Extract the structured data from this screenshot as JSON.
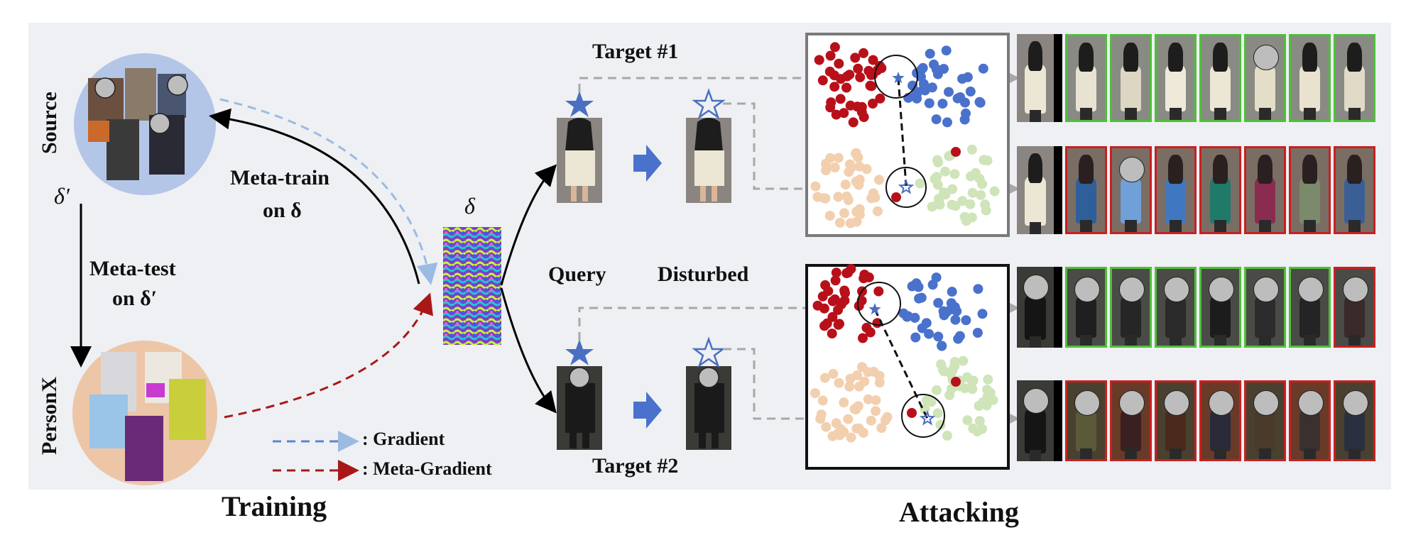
{
  "panels": {
    "training_title": "Training",
    "attacking_title": "Attacking"
  },
  "labels": {
    "source": "Source",
    "personx": "PersonX",
    "delta_prime": "δ′",
    "meta_train_line1": "Meta-train",
    "meta_train_line2": "on δ",
    "meta_test_line1": "Meta-test",
    "meta_test_line2": "on δ′",
    "delta": "δ",
    "query": "Query",
    "disturbed": "Disturbed",
    "target1": "Target #1",
    "target2": "Target #2"
  },
  "legend": {
    "gradient": ": Gradient",
    "meta_gradient": ": Meta-Gradient"
  },
  "colors": {
    "panel_bg": "#eef0f3",
    "source_circle": "#b3c6e8",
    "personx_circle": "#edc6a8",
    "gradient_arrow": "#9bbbe3",
    "meta_gradient_arrow": "#a81818",
    "star": "#4a6fc2",
    "cluster_red": "#b8101a",
    "cluster_blue": "#4a72cc",
    "cluster_peach": "#f2cfae",
    "cluster_green": "#cfe4b8",
    "match_border": "#4fbf3a",
    "mismatch_border": "#c82020"
  },
  "retrieval_rows": [
    {
      "name": "target1-query",
      "borders": [
        "match",
        "match",
        "match",
        "match",
        "match",
        "match",
        "match"
      ]
    },
    {
      "name": "target1-disturbed",
      "borders": [
        "mismatch",
        "mismatch",
        "mismatch",
        "mismatch",
        "mismatch",
        "mismatch",
        "mismatch"
      ]
    },
    {
      "name": "target2-query",
      "borders": [
        "match",
        "match",
        "match",
        "match",
        "match",
        "match",
        "mismatch"
      ]
    },
    {
      "name": "target2-disturbed",
      "borders": [
        "mismatch",
        "mismatch",
        "mismatch",
        "mismatch",
        "mismatch",
        "mismatch",
        "mismatch"
      ]
    }
  ],
  "icons": [
    "filled-star-icon",
    "hollow-star-icon",
    "right-arrow-icon",
    "face-blur-icon",
    "noise-pattern-icon"
  ]
}
